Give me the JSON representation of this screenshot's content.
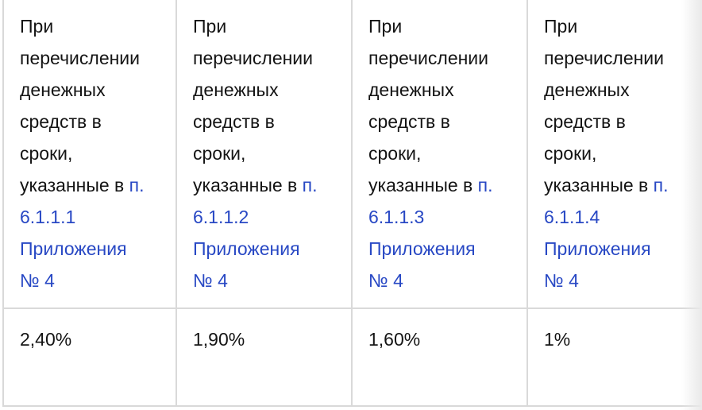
{
  "table": {
    "columns": [
      {
        "condition_text": "При\nперечислении\nденежных\nсредств в\nсроки,\nуказанные в ",
        "link_text": "п.\n6.1.1.1\nПриложения\n№ 4",
        "rate": "2,40%"
      },
      {
        "condition_text": "При\nперечислении\nденежных\nсредств в\nсроки,\nуказанные в ",
        "link_text": "п.\n6.1.1.2\nПриложения\n№ 4",
        "rate": "1,90%"
      },
      {
        "condition_text": "При\nперечислении\nденежных\nсредств в\nсроки,\nуказанные в ",
        "link_text": "п.\n6.1.1.3\nПриложения\n№ 4",
        "rate": "1,60%"
      },
      {
        "condition_text": "При\nперечислении\nденежных\nсредств в\nсроки,\nуказанные в ",
        "link_text": "п.\n6.1.1.4\nПриложения\n№ 4",
        "rate": "1%"
      }
    ],
    "colors": {
      "link": "#2848c4",
      "border": "#d9d9d9",
      "text": "#141414",
      "fade": "#e9e9e9"
    }
  }
}
